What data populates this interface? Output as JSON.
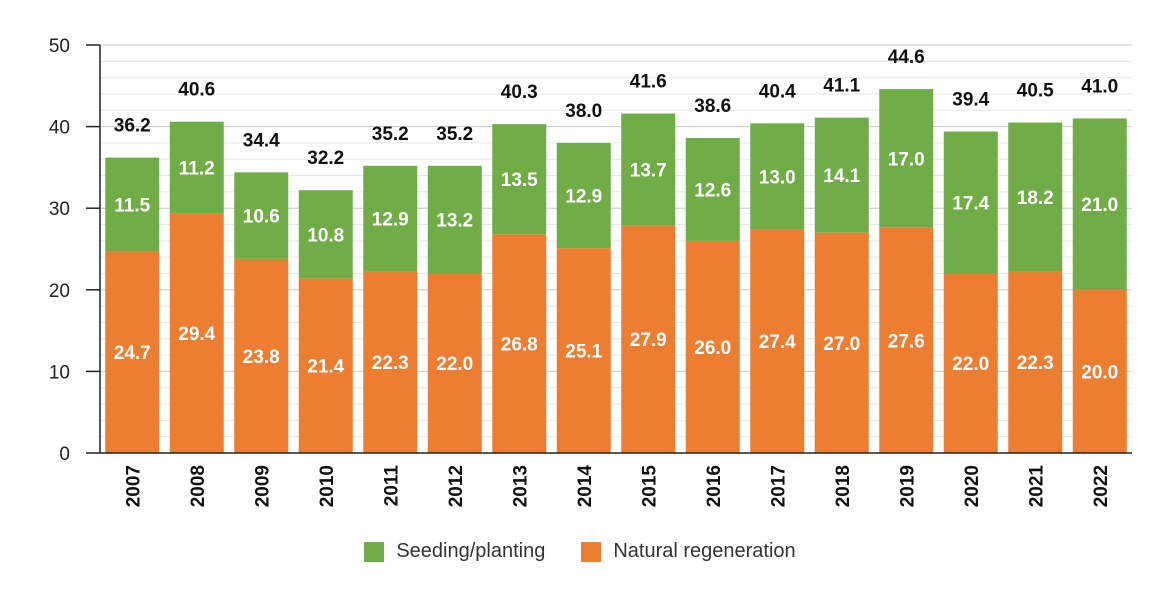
{
  "chart_data": {
    "type": "bar",
    "stacked": true,
    "categories": [
      "2007",
      "2008",
      "2009",
      "2010",
      "2011",
      "2012",
      "2013",
      "2014",
      "2015",
      "2016",
      "2017",
      "2018",
      "2019",
      "2020",
      "2021",
      "2022"
    ],
    "series": [
      {
        "name": "Natural regeneration",
        "color": "#ED7D31",
        "values": [
          24.7,
          29.4,
          23.8,
          21.4,
          22.3,
          22.0,
          26.8,
          25.1,
          27.9,
          26.0,
          27.4,
          27.0,
          27.6,
          22.0,
          22.3,
          20.0
        ],
        "labels": [
          "24.7",
          "29.4",
          "23.8",
          "21.4",
          "22.3",
          "22.0",
          "26.8",
          "25.1",
          "27.9",
          "26.0",
          "27.4",
          "27.0",
          "27.6",
          "22.0",
          "22.3",
          "20.0"
        ]
      },
      {
        "name": "Seeding/planting",
        "color": "#70AD47",
        "values": [
          11.5,
          11.2,
          10.6,
          10.8,
          12.9,
          13.2,
          13.5,
          12.9,
          13.7,
          12.6,
          13.0,
          14.1,
          17.0,
          17.4,
          18.2,
          21.0
        ],
        "labels": [
          "11.5",
          "11.2",
          "10.6",
          "10.8",
          "12.9",
          "13.2",
          "13.5",
          "12.9",
          "13.7",
          "12.6",
          "13.0",
          "14.1",
          "17.0",
          "17.4",
          "18.2",
          "21.0"
        ]
      }
    ],
    "totals": [
      36.2,
      40.6,
      34.4,
      32.2,
      35.2,
      35.2,
      40.3,
      38.0,
      41.6,
      38.6,
      40.4,
      41.1,
      44.6,
      39.4,
      40.5,
      41.0
    ],
    "total_labels": [
      "36.2",
      "40.6",
      "34.4",
      "32.2",
      "35.2",
      "35.2",
      "40.3",
      "38.0",
      "41.6",
      "38.6",
      "40.4",
      "41.1",
      "44.6",
      "39.4",
      "40.5",
      "41.0"
    ],
    "ylim": [
      0,
      50
    ],
    "yticks": [
      0,
      10,
      20,
      30,
      40,
      50
    ],
    "ytick_labels": [
      "0",
      "10",
      "20",
      "30",
      "40",
      "50"
    ],
    "grid": true,
    "legend_position": "bottom",
    "title": "",
    "xlabel": "",
    "ylabel": ""
  },
  "legend": {
    "items": [
      {
        "label": "Seeding/planting",
        "color": "#70AD47"
      },
      {
        "label": "Natural regeneration",
        "color": "#ED7D31"
      }
    ]
  }
}
